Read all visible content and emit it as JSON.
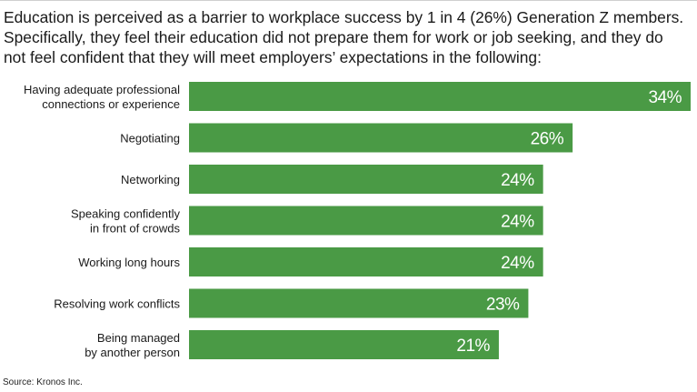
{
  "heading": {
    "lines": [
      "Education is perceived as a barrier to workplace success by 1 in 4 (26%) Generation Z members.",
      "Specifically, they feel their education did not prepare them for work or job seeking, and they do",
      "not feel confident that they will meet employers’ expectations in the following:"
    ]
  },
  "source": "Source: Kronos Inc.",
  "colors": {
    "bar": "#4a9a45",
    "bar_label": "#ffffff",
    "category_label": "#1a1a1a"
  },
  "chart_data": {
    "type": "bar",
    "orientation": "horizontal",
    "categories": [
      [
        "Having adequate professional",
        "connections or experience"
      ],
      [
        "Negotiating"
      ],
      [
        "Networking"
      ],
      [
        "Speaking confidently",
        "in front of crowds"
      ],
      [
        "Working long hours"
      ],
      [
        "Resolving work conflicts"
      ],
      [
        "Being managed",
        "by another person"
      ]
    ],
    "values": [
      34,
      26,
      24,
      24,
      24,
      23,
      21
    ],
    "value_labels": [
      "34%",
      "26%",
      "24%",
      "24%",
      "24%",
      "23%",
      "21%"
    ],
    "xlim": [
      0,
      34
    ],
    "grid": false,
    "legend": "none"
  }
}
